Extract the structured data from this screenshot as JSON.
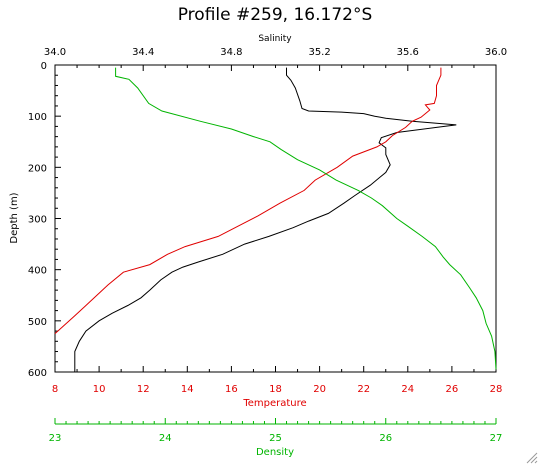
{
  "chart_data": {
    "type": "line",
    "title": "Profile #259, 16.172°S",
    "ylabel": "Depth (m)",
    "y_axis": {
      "range": [
        0,
        600
      ],
      "inverted": true,
      "ticks": [
        0,
        100,
        200,
        300,
        400,
        500,
        600
      ]
    },
    "axes": {
      "salinity": {
        "label": "Salinity",
        "position": "top",
        "color": "#000000",
        "range": [
          34.0,
          36.0
        ],
        "ticks": [
          "34.0",
          "34.4",
          "34.8",
          "35.2",
          "35.6",
          "36.0"
        ]
      },
      "temperature": {
        "label": "Temperature",
        "position": "bottom",
        "color": "#e00000",
        "range": [
          8,
          28
        ],
        "ticks": [
          "8",
          "10",
          "12",
          "14",
          "16",
          "18",
          "20",
          "22",
          "24",
          "26",
          "28"
        ]
      },
      "density": {
        "label": "Density",
        "position": "bottom-offset",
        "color": "#00b400",
        "range": [
          23,
          27
        ],
        "ticks": [
          "23",
          "24",
          "25",
          "26",
          "27"
        ]
      }
    },
    "series": [
      {
        "axis": "salinity",
        "color": "#000000",
        "points": [
          [
            35.05,
            5
          ],
          [
            35.05,
            20
          ],
          [
            35.07,
            30
          ],
          [
            35.09,
            45
          ],
          [
            35.11,
            70
          ],
          [
            35.12,
            85
          ],
          [
            35.15,
            90
          ],
          [
            35.3,
            92
          ],
          [
            35.4,
            95
          ],
          [
            35.45,
            100
          ],
          [
            35.5,
            104
          ],
          [
            35.62,
            110
          ],
          [
            35.82,
            117
          ],
          [
            35.73,
            122
          ],
          [
            35.55,
            132
          ],
          [
            35.48,
            142
          ],
          [
            35.47,
            152
          ],
          [
            35.5,
            162
          ],
          [
            35.5,
            175
          ],
          [
            35.52,
            195
          ],
          [
            35.5,
            210
          ],
          [
            35.43,
            235
          ],
          [
            35.36,
            255
          ],
          [
            35.31,
            270
          ],
          [
            35.24,
            290
          ],
          [
            35.15,
            305
          ],
          [
            35.08,
            318
          ],
          [
            34.97,
            335
          ],
          [
            34.86,
            350
          ],
          [
            34.76,
            370
          ],
          [
            34.65,
            385
          ],
          [
            34.58,
            395
          ],
          [
            34.53,
            405
          ],
          [
            34.48,
            420
          ],
          [
            34.43,
            440
          ],
          [
            34.39,
            455
          ],
          [
            34.33,
            470
          ],
          [
            34.26,
            485
          ],
          [
            34.2,
            500
          ],
          [
            34.14,
            520
          ],
          [
            34.11,
            540
          ],
          [
            34.09,
            560
          ],
          [
            34.09,
            580
          ],
          [
            34.09,
            600
          ]
        ]
      },
      {
        "axis": "temperature",
        "color": "#e00000",
        "points": [
          [
            25.5,
            5
          ],
          [
            25.5,
            20
          ],
          [
            25.4,
            30
          ],
          [
            25.3,
            40
          ],
          [
            25.3,
            60
          ],
          [
            25.2,
            75
          ],
          [
            24.8,
            78
          ],
          [
            25.0,
            88
          ],
          [
            24.8,
            95
          ],
          [
            24.6,
            102
          ],
          [
            24.2,
            110
          ],
          [
            23.9,
            122
          ],
          [
            23.3,
            138
          ],
          [
            23.0,
            150
          ],
          [
            22.6,
            160
          ],
          [
            21.5,
            178
          ],
          [
            20.8,
            200
          ],
          [
            19.8,
            225
          ],
          [
            19.3,
            245
          ],
          [
            18.2,
            270
          ],
          [
            17.2,
            295
          ],
          [
            16.3,
            315
          ],
          [
            15.4,
            335
          ],
          [
            13.9,
            355
          ],
          [
            13.1,
            370
          ],
          [
            12.3,
            390
          ],
          [
            11.1,
            405
          ],
          [
            10.4,
            430
          ],
          [
            9.9,
            450
          ],
          [
            9.4,
            470
          ],
          [
            8.9,
            490
          ],
          [
            8.0,
            525
          ]
        ]
      },
      {
        "axis": "density",
        "color": "#00b400",
        "points": [
          [
            23.55,
            5
          ],
          [
            23.55,
            22
          ],
          [
            23.67,
            28
          ],
          [
            23.75,
            45
          ],
          [
            23.85,
            75
          ],
          [
            23.97,
            90
          ],
          [
            24.32,
            110
          ],
          [
            24.6,
            125
          ],
          [
            24.8,
            140
          ],
          [
            24.95,
            150
          ],
          [
            25.05,
            165
          ],
          [
            25.2,
            185
          ],
          [
            25.4,
            205
          ],
          [
            25.55,
            225
          ],
          [
            25.75,
            245
          ],
          [
            25.87,
            260
          ],
          [
            25.97,
            275
          ],
          [
            26.1,
            300
          ],
          [
            26.2,
            315
          ],
          [
            26.33,
            335
          ],
          [
            26.45,
            355
          ],
          [
            26.52,
            375
          ],
          [
            26.58,
            390
          ],
          [
            26.68,
            410
          ],
          [
            26.76,
            435
          ],
          [
            26.82,
            455
          ],
          [
            26.88,
            480
          ],
          [
            26.91,
            505
          ],
          [
            26.96,
            530
          ],
          [
            26.99,
            560
          ],
          [
            27.02,
            595
          ]
        ]
      }
    ]
  }
}
